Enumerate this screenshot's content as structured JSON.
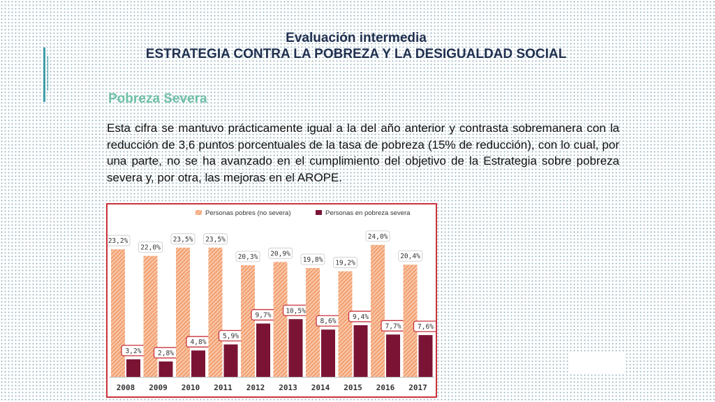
{
  "header": {
    "title_line1": "Evaluación intermedia",
    "title_line2": "ESTRATEGIA CONTRA LA POBREZA Y LA DESIGUALDAD SOCIAL"
  },
  "section": {
    "subtitle": "Pobreza Severa",
    "paragraph": "Esta cifra se mantuvo prácticamente igual a la del año anterior y contrasta sobremanera con la reducción de 3,6 puntos porcentuales de la tasa de pobreza (15% de reducción), con lo cual, por una parte, no se ha avanzado en el cumplimiento del objetivo de la Estrategia sobre pobreza severa y, por otra, las mejoras en el AROPE."
  },
  "colors": {
    "accent": "#3f9ea9",
    "title": "#1f2f4f",
    "subtitle": "#6ec0a6",
    "series_poor": "#f4a577",
    "series_severe": "#7b1434",
    "frame": "#c9333b"
  },
  "chart_data": {
    "type": "bar",
    "title": "",
    "xlabel": "",
    "ylabel": "",
    "legend_position": "top",
    "grid": false,
    "categories": [
      "2008",
      "2009",
      "2010",
      "2011",
      "2012",
      "2013",
      "2014",
      "2015",
      "2016",
      "2017"
    ],
    "series": [
      {
        "name": "Personas pobres (no severa)",
        "values": [
          23.2,
          22.0,
          23.5,
          23.5,
          20.3,
          20.9,
          19.8,
          19.2,
          24.0,
          20.4
        ],
        "labels": [
          "23,2%",
          "22,0%",
          "23,5%",
          "23,5%",
          "20,3%",
          "20,9%",
          "19,8%",
          "19,2%",
          "24,0%",
          "20,4%"
        ]
      },
      {
        "name": "Personas en pobreza severa",
        "values": [
          3.2,
          2.8,
          4.8,
          5.9,
          9.7,
          10.5,
          8.6,
          9.4,
          7.7,
          7.6
        ],
        "labels": [
          "3,2%",
          "2,8%",
          "4,8%",
          "5,9%",
          "9,7%",
          "10,5%",
          "8,6%",
          "9,4%",
          "7,7%",
          "7,6%"
        ]
      }
    ],
    "ylim": [
      0,
      25
    ]
  }
}
